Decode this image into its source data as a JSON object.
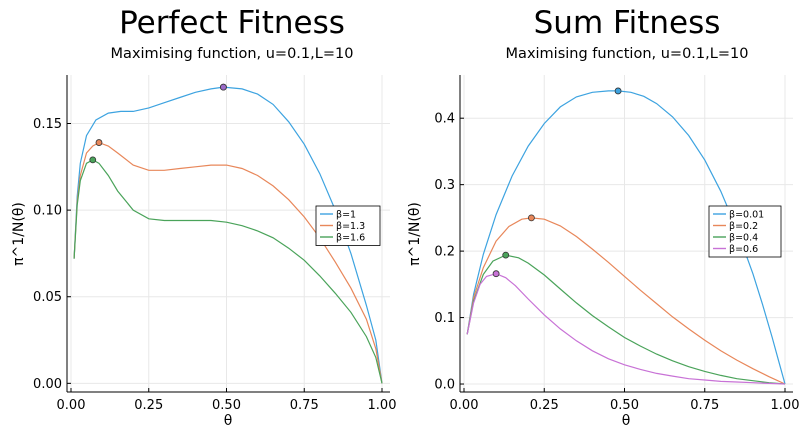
{
  "chart_data": [
    {
      "type": "line",
      "title": "Perfect Fitness",
      "subtitle": "Maximising function, u=0.1,L=10",
      "xlabel": "θ",
      "ylabel": "π^1/N(θ)",
      "xlim": [
        0,
        1
      ],
      "ylim": [
        -0.005,
        0.178
      ],
      "xticks": [
        "0.00",
        "0.25",
        "0.50",
        "0.75",
        "1.00"
      ],
      "xtick_values": [
        0,
        0.25,
        0.5,
        0.75,
        1
      ],
      "yticks": [
        "0.00",
        "0.05",
        "0.10",
        "0.15"
      ],
      "ytick_values": [
        0,
        0.05,
        0.1,
        0.15
      ],
      "grid": true,
      "legend_position": "right",
      "series": [
        {
          "name": "β=1",
          "color": "#3da3e0",
          "x": [
            0.01,
            0.02,
            0.03,
            0.05,
            0.08,
            0.12,
            0.16,
            0.2,
            0.25,
            0.3,
            0.35,
            0.4,
            0.45,
            0.49,
            0.55,
            0.6,
            0.65,
            0.7,
            0.75,
            0.8,
            0.85,
            0.9,
            0.95,
            0.98,
            1.0
          ],
          "y": [
            0.072,
            0.108,
            0.127,
            0.143,
            0.152,
            0.156,
            0.157,
            0.157,
            0.159,
            0.162,
            0.165,
            0.168,
            0.17,
            0.171,
            0.17,
            0.167,
            0.161,
            0.151,
            0.138,
            0.121,
            0.1,
            0.075,
            0.045,
            0.025,
            0.0
          ],
          "max_point": [
            0.49,
            0.171
          ]
        },
        {
          "name": "β=1.3",
          "color": "#e8875a",
          "x": [
            0.01,
            0.02,
            0.03,
            0.05,
            0.07,
            0.09,
            0.12,
            0.15,
            0.2,
            0.25,
            0.3,
            0.35,
            0.4,
            0.45,
            0.5,
            0.55,
            0.6,
            0.65,
            0.7,
            0.75,
            0.8,
            0.85,
            0.9,
            0.95,
            0.98,
            1.0
          ],
          "y": [
            0.072,
            0.105,
            0.12,
            0.133,
            0.137,
            0.139,
            0.137,
            0.133,
            0.126,
            0.123,
            0.123,
            0.124,
            0.125,
            0.126,
            0.126,
            0.124,
            0.12,
            0.114,
            0.106,
            0.096,
            0.084,
            0.07,
            0.055,
            0.037,
            0.02,
            0.0
          ],
          "max_point": [
            0.09,
            0.139
          ]
        },
        {
          "name": "β=1.6",
          "color": "#4aa35a",
          "x": [
            0.01,
            0.02,
            0.03,
            0.05,
            0.07,
            0.09,
            0.12,
            0.15,
            0.2,
            0.25,
            0.3,
            0.35,
            0.4,
            0.45,
            0.5,
            0.55,
            0.6,
            0.65,
            0.7,
            0.75,
            0.8,
            0.85,
            0.9,
            0.95,
            0.98,
            1.0
          ],
          "y": [
            0.072,
            0.103,
            0.117,
            0.127,
            0.129,
            0.127,
            0.12,
            0.111,
            0.1,
            0.095,
            0.094,
            0.094,
            0.094,
            0.094,
            0.093,
            0.091,
            0.088,
            0.084,
            0.078,
            0.071,
            0.062,
            0.052,
            0.041,
            0.027,
            0.015,
            0.0
          ],
          "max_point": [
            0.07,
            0.129
          ]
        }
      ],
      "extra_marker": {
        "x": 0.49,
        "y": 0.171,
        "color": "#9b6bc9"
      }
    },
    {
      "type": "line",
      "title": "Sum Fitness",
      "subtitle": "Maximising function, u=0.1,L=10",
      "xlabel": "θ",
      "ylabel": "π^1/N(θ)",
      "xlim": [
        0,
        1
      ],
      "ylim": [
        -0.012,
        0.465
      ],
      "xticks": [
        "0.00",
        "0.25",
        "0.50",
        "0.75",
        "1.00"
      ],
      "xtick_values": [
        0,
        0.25,
        0.5,
        0.75,
        1
      ],
      "yticks": [
        "0.0",
        "0.1",
        "0.2",
        "0.3",
        "0.4"
      ],
      "ytick_values": [
        0,
        0.1,
        0.2,
        0.3,
        0.4
      ],
      "grid": true,
      "legend_position": "right",
      "series": [
        {
          "name": "β=0.01",
          "color": "#3da3e0",
          "x": [
            0.01,
            0.03,
            0.06,
            0.1,
            0.15,
            0.2,
            0.25,
            0.3,
            0.35,
            0.4,
            0.45,
            0.48,
            0.52,
            0.56,
            0.6,
            0.65,
            0.7,
            0.75,
            0.8,
            0.85,
            0.9,
            0.93,
            0.96,
            0.98,
            1.0
          ],
          "y": [
            0.075,
            0.135,
            0.195,
            0.255,
            0.313,
            0.358,
            0.392,
            0.417,
            0.432,
            0.439,
            0.441,
            0.441,
            0.439,
            0.433,
            0.422,
            0.402,
            0.374,
            0.337,
            0.29,
            0.233,
            0.166,
            0.12,
            0.07,
            0.035,
            0.0
          ],
          "max_point": [
            0.48,
            0.441
          ]
        },
        {
          "name": "β=0.2",
          "color": "#e8875a",
          "x": [
            0.01,
            0.03,
            0.06,
            0.1,
            0.14,
            0.18,
            0.21,
            0.25,
            0.3,
            0.35,
            0.4,
            0.45,
            0.5,
            0.55,
            0.6,
            0.65,
            0.7,
            0.75,
            0.8,
            0.85,
            0.9,
            0.95,
            1.0
          ],
          "y": [
            0.075,
            0.13,
            0.175,
            0.215,
            0.237,
            0.248,
            0.25,
            0.248,
            0.238,
            0.222,
            0.203,
            0.183,
            0.162,
            0.141,
            0.121,
            0.101,
            0.083,
            0.066,
            0.05,
            0.036,
            0.023,
            0.011,
            0.0
          ],
          "max_point": [
            0.21,
            0.25
          ]
        },
        {
          "name": "β=0.4",
          "color": "#4aa35a",
          "x": [
            0.01,
            0.03,
            0.06,
            0.09,
            0.13,
            0.17,
            0.2,
            0.25,
            0.3,
            0.35,
            0.4,
            0.45,
            0.5,
            0.55,
            0.6,
            0.65,
            0.7,
            0.75,
            0.8,
            0.85,
            0.9,
            0.95,
            1.0
          ],
          "y": [
            0.075,
            0.125,
            0.165,
            0.185,
            0.194,
            0.19,
            0.182,
            0.164,
            0.143,
            0.122,
            0.103,
            0.086,
            0.07,
            0.057,
            0.045,
            0.035,
            0.026,
            0.019,
            0.013,
            0.008,
            0.005,
            0.002,
            0.0
          ],
          "max_point": [
            0.13,
            0.194
          ]
        },
        {
          "name": "β=0.6",
          "color": "#c872d6",
          "x": [
            0.01,
            0.03,
            0.05,
            0.07,
            0.1,
            0.13,
            0.16,
            0.2,
            0.25,
            0.3,
            0.35,
            0.4,
            0.45,
            0.5,
            0.55,
            0.6,
            0.65,
            0.7,
            0.75,
            0.8,
            0.85,
            0.9,
            0.95,
            1.0
          ],
          "y": [
            0.075,
            0.122,
            0.15,
            0.162,
            0.166,
            0.16,
            0.148,
            0.128,
            0.104,
            0.083,
            0.065,
            0.05,
            0.038,
            0.029,
            0.022,
            0.016,
            0.012,
            0.008,
            0.006,
            0.004,
            0.003,
            0.002,
            0.001,
            0.0
          ],
          "max_point": [
            0.1,
            0.166
          ]
        }
      ]
    }
  ]
}
